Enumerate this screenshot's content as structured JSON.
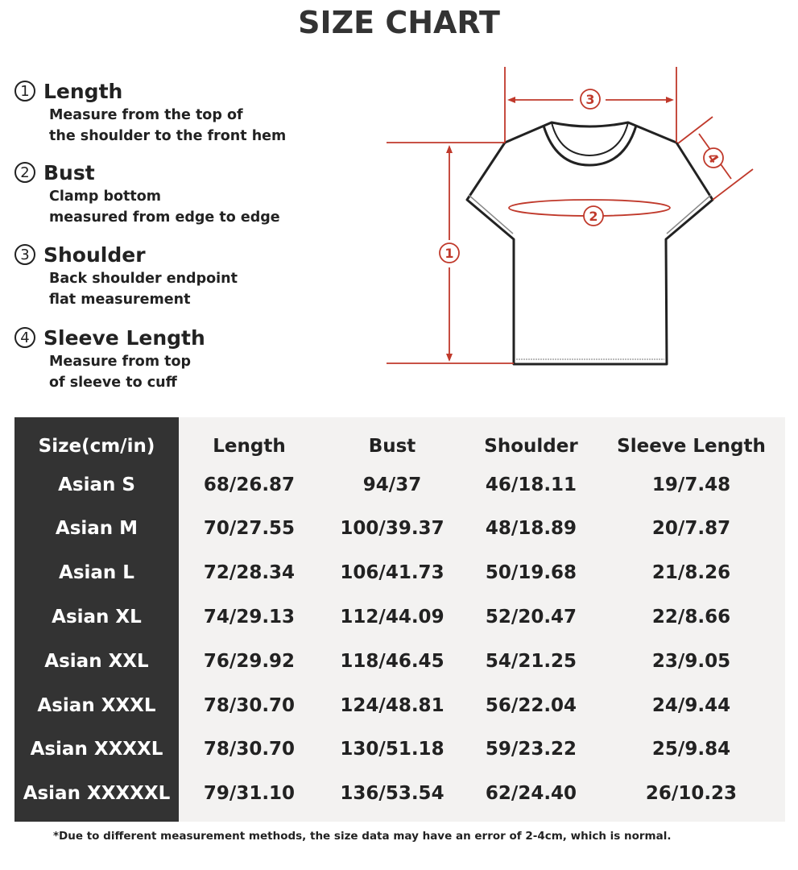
{
  "title": "SIZE CHART",
  "definitions": [
    {
      "num": "1",
      "label": "Length",
      "desc1": "Measure from the top of",
      "desc2": "the shoulder to the front hem"
    },
    {
      "num": "2",
      "label": "Bust",
      "desc1": "Clamp bottom",
      "desc2": "measured from edge to edge"
    },
    {
      "num": "3",
      "label": "Shoulder",
      "desc1": "Back shoulder endpoint",
      "desc2": "flat measurement"
    },
    {
      "num": "4",
      "label": "Sleeve Length",
      "desc1": "Measure from top",
      "desc2": "of sleeve to cuff"
    }
  ],
  "diagram": {
    "markers": [
      "1",
      "2",
      "3",
      "4"
    ],
    "line_color": "#c0392b",
    "shirt_color": "#222222"
  },
  "table": {
    "headers": [
      "Size(cm/in)",
      "Length",
      "Bust",
      "Shoulder",
      "Sleeve Length"
    ],
    "rows": [
      [
        "Asian S",
        "68/26.87",
        "94/37",
        "46/18.11",
        "19/7.48"
      ],
      [
        "Asian M",
        "70/27.55",
        "100/39.37",
        "48/18.89",
        "20/7.87"
      ],
      [
        "Asian L",
        "72/28.34",
        "106/41.73",
        "50/19.68",
        "21/8.26"
      ],
      [
        "Asian XL",
        "74/29.13",
        "112/44.09",
        "52/20.47",
        "22/8.66"
      ],
      [
        "Asian XXL",
        "76/29.92",
        "118/46.45",
        "54/21.25",
        "23/9.05"
      ],
      [
        "Asian XXXL",
        "78/30.70",
        "124/48.81",
        "56/22.04",
        "24/9.44"
      ],
      [
        "Asian XXXXL",
        "78/30.70",
        "130/51.18",
        "59/23.22",
        "25/9.84"
      ],
      [
        "Asian XXXXXL",
        "79/31.10",
        "136/53.54",
        "62/24.40",
        "26/10.23"
      ]
    ]
  },
  "note": "*Due to different measurement methods, the size data may have an error of 2-4cm, which is normal."
}
